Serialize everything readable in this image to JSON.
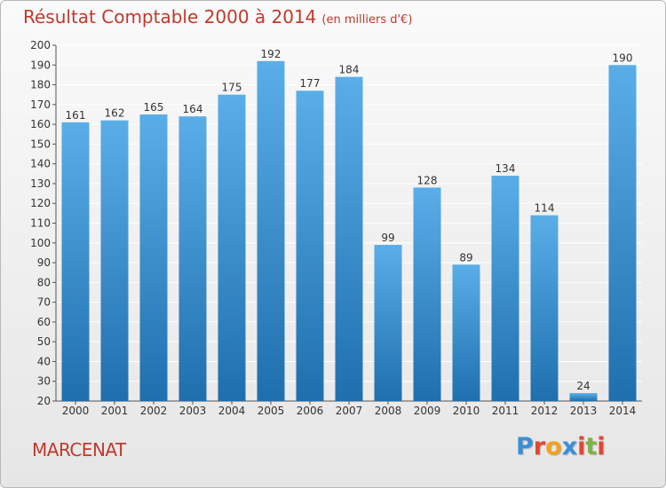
{
  "header": {
    "title": "Résultat Comptable 2000 à 2014",
    "subtitle": "(en milliers d'€)"
  },
  "footer": {
    "commune": "MARCENAT",
    "logo_letters": [
      "P",
      "r",
      "o",
      "x",
      "i",
      "t",
      "i"
    ],
    "logo_colors": [
      "#3a8fd6",
      "#e2462f",
      "#f2a21b",
      "#3a8fd6",
      "#e2462f",
      "#7cb342",
      "#e2462f"
    ]
  },
  "colors": {
    "bar_top": "#5aaee8",
    "bar_bottom": "#1f6fae",
    "grid": "#ffffff",
    "text": "#333333",
    "accent": "#c0392b"
  },
  "chart_data": {
    "type": "bar",
    "title": "Résultat Comptable 2000 à 2014",
    "subtitle": "(en milliers d'€)",
    "categories": [
      "2000",
      "2001",
      "2002",
      "2003",
      "2004",
      "2005",
      "2006",
      "2007",
      "2008",
      "2009",
      "2010",
      "2011",
      "2012",
      "2013",
      "2014"
    ],
    "values": [
      161,
      162,
      165,
      164,
      175,
      192,
      177,
      184,
      99,
      128,
      89,
      134,
      114,
      24,
      190
    ],
    "ylim": [
      20,
      200
    ],
    "yticks": [
      20,
      30,
      40,
      50,
      60,
      70,
      80,
      90,
      100,
      110,
      120,
      130,
      140,
      150,
      160,
      170,
      180,
      190,
      200
    ],
    "grid": true,
    "data_labels": true
  }
}
